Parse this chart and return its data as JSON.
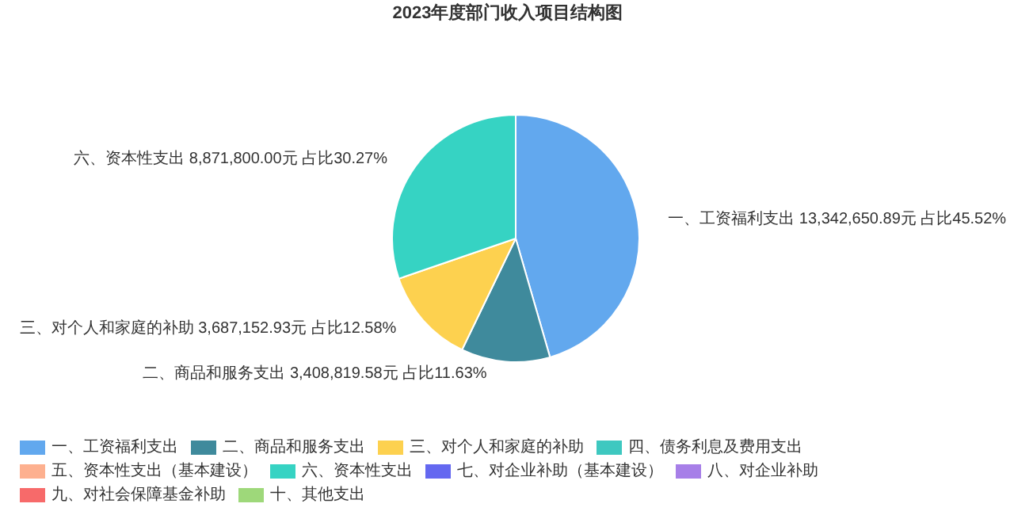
{
  "chart_data": {
    "type": "pie",
    "title": "2023年度部门收入项目结构图",
    "categories": [
      "一、工资福利支出",
      "二、商品和服务支出",
      "三、对个人和家庭的补助",
      "四、债务利息及费用支出",
      "五、资本性支出（基本建设）",
      "六、资本性支出",
      "七、对企业补助（基本建设）",
      "八、对企业补助",
      "九、对社会保障基金补助",
      "十、其他支出"
    ],
    "values": [
      13342650.89,
      3408819.58,
      3687152.93,
      0,
      0,
      8871800.0,
      0,
      0,
      0,
      0
    ],
    "value_labels": [
      "13,342,650.89元 占比45.52%",
      "3,408,819.58元 占比11.63%",
      "3,687,152.93元 占比12.58%",
      null,
      null,
      "8,871,800.00元 占比30.27%",
      null,
      null,
      null,
      null
    ],
    "colors": [
      "#62a8ee",
      "#3f8a9c",
      "#fdd14f",
      "#3ec8c0",
      "#fdb08f",
      "#36d3c3",
      "#6468f0",
      "#a77fe8",
      "#f76a6a",
      "#9ed87a"
    ],
    "legend": "bottom"
  }
}
